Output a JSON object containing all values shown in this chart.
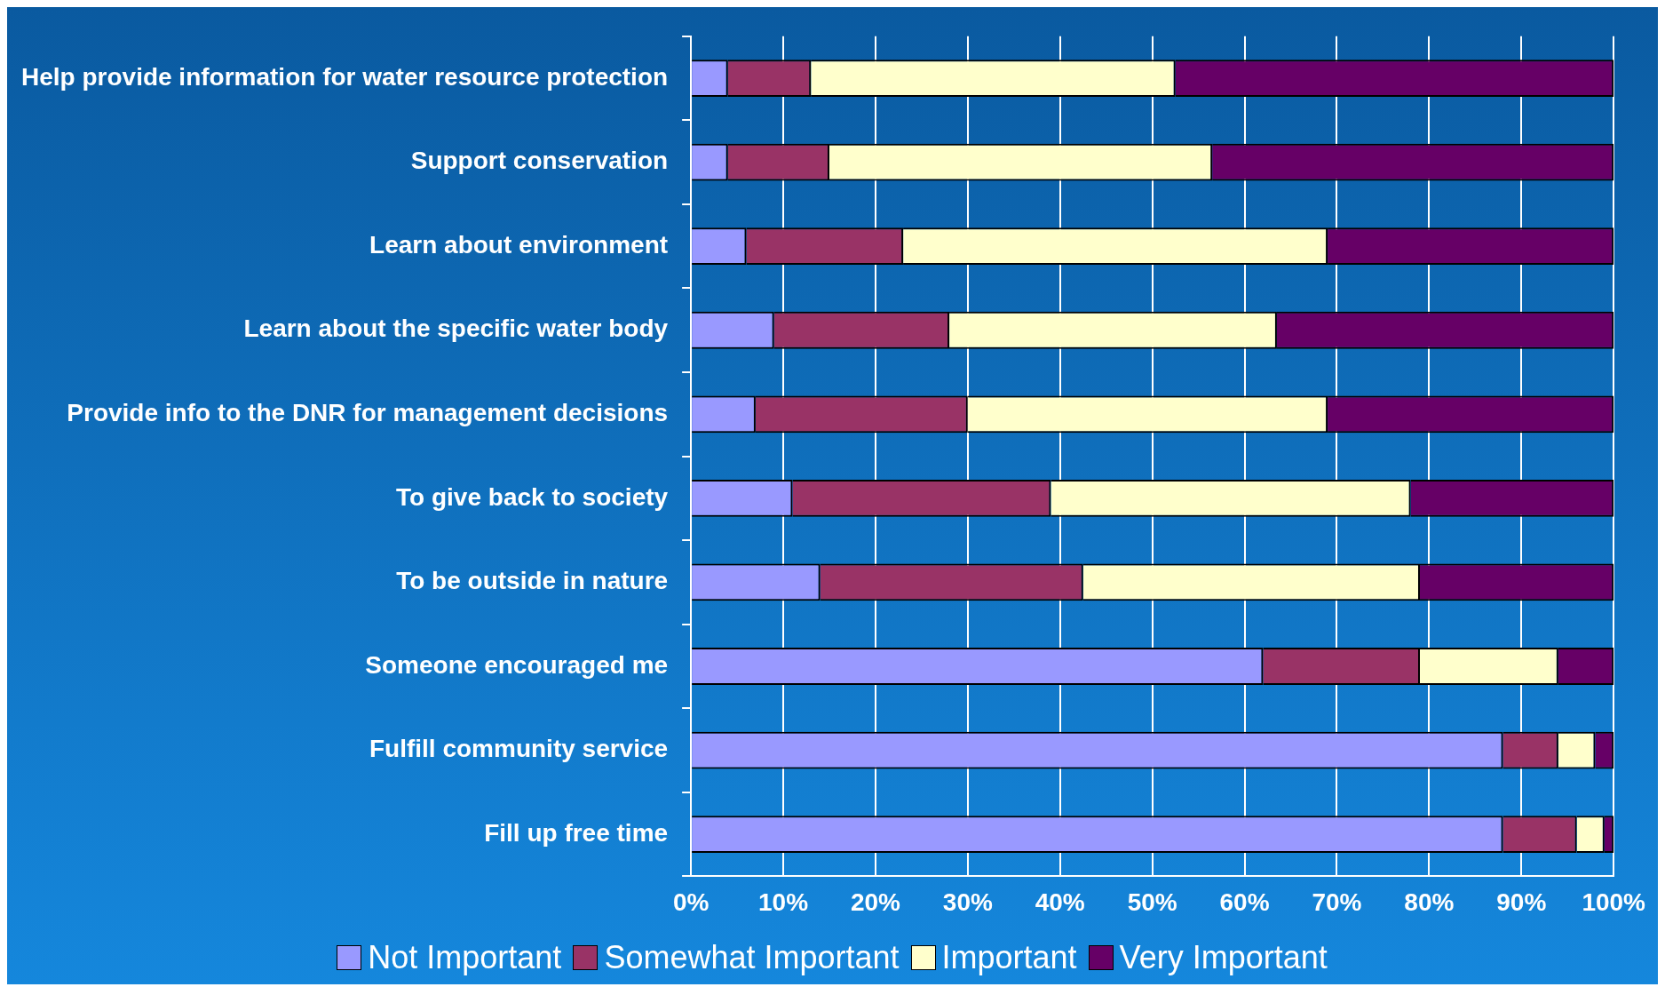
{
  "chart_data": {
    "type": "bar",
    "orientation": "horizontal",
    "stacked": true,
    "categories": [
      "Help provide information for water resource protection",
      "Support conservation",
      "Learn about environment",
      "Learn about the specific water body",
      "Provide info to the DNR for management decisions",
      "To give back to society",
      "To be outside in nature",
      "Someone encouraged me",
      "Fulfill community service",
      "Fill up free time"
    ],
    "series": [
      {
        "name": "Not Important",
        "color": "#9999ff",
        "values": [
          4,
          4,
          6,
          9,
          7,
          11,
          14,
          62,
          88,
          88
        ]
      },
      {
        "name": "Somewhat Important",
        "color": "#993366",
        "values": [
          9,
          11,
          17,
          19,
          23,
          28,
          28.5,
          17,
          6,
          8
        ]
      },
      {
        "name": "Important",
        "color": "#ffffcc",
        "values": [
          39.5,
          41.5,
          46,
          35.5,
          39,
          39,
          36.5,
          15,
          4,
          3
        ]
      },
      {
        "name": "Very Important",
        "color": "#660066",
        "values": [
          47.5,
          43.5,
          31,
          36.5,
          31,
          22,
          21,
          6,
          2,
          1
        ]
      }
    ],
    "xlim": [
      0,
      100
    ],
    "xticks": [
      {
        "value": 0,
        "label": "0%"
      },
      {
        "value": 10,
        "label": "10%"
      },
      {
        "value": 20,
        "label": "20%"
      },
      {
        "value": 30,
        "label": "30%"
      },
      {
        "value": 40,
        "label": "40%"
      },
      {
        "value": 50,
        "label": "50%"
      },
      {
        "value": 60,
        "label": "60%"
      },
      {
        "value": 70,
        "label": "70%"
      },
      {
        "value": 80,
        "label": "80%"
      },
      {
        "value": 90,
        "label": "90%"
      },
      {
        "value": 100,
        "label": "100%"
      }
    ],
    "grid": "x",
    "legend": "bottom"
  }
}
